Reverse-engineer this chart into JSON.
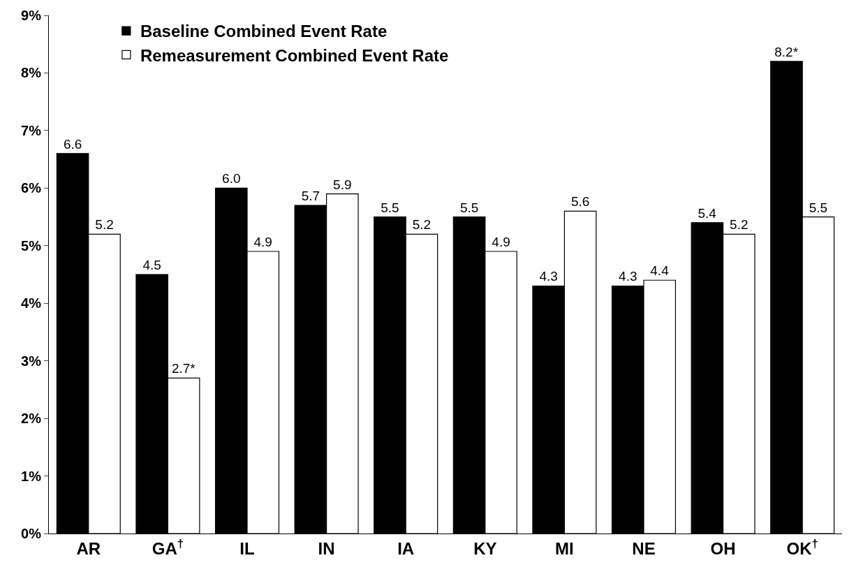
{
  "chart_data": {
    "type": "bar",
    "categories": [
      "AR",
      "GA$^{†}$",
      "IL",
      "IN",
      "IA",
      "KY",
      "MI",
      "NE",
      "OH",
      "OK$^{†}$"
    ],
    "series": [
      {
        "name": "Baseline Combined Event Rate",
        "color": "#000000",
        "values": [
          6.6,
          4.5,
          6.0,
          5.7,
          5.5,
          5.5,
          4.3,
          4.3,
          5.4,
          8.2
        ],
        "value_labels": [
          "6.6",
          "4.5",
          "6.0",
          "5.7",
          "5.5",
          "5.5",
          "4.3",
          "4.3",
          "5.4",
          "8.2*"
        ]
      },
      {
        "name": "Remeasurement Combined Event Rate",
        "color": "#ffffff",
        "values": [
          5.2,
          2.7,
          4.9,
          5.9,
          5.2,
          4.9,
          5.6,
          4.4,
          5.2,
          5.5
        ],
        "value_labels": [
          "5.2",
          "2.7*",
          "4.9",
          "5.9",
          "5.2",
          "4.9",
          "5.6",
          "4.4",
          "5.2",
          "5.5"
        ]
      }
    ],
    "ylim": [
      0,
      9
    ],
    "yticks": [
      {
        "value": 0,
        "label": "0%"
      },
      {
        "value": 1,
        "label": "1%"
      },
      {
        "value": 2,
        "label": "2%"
      },
      {
        "value": 3,
        "label": "3%"
      },
      {
        "value": 4,
        "label": "4%"
      },
      {
        "value": 5,
        "label": "5%"
      },
      {
        "value": 6,
        "label": "6%"
      },
      {
        "value": 7,
        "label": "7%"
      },
      {
        "value": 8,
        "label": "8%"
      },
      {
        "value": 9,
        "label": "9%"
      }
    ],
    "legend": "top left"
  }
}
